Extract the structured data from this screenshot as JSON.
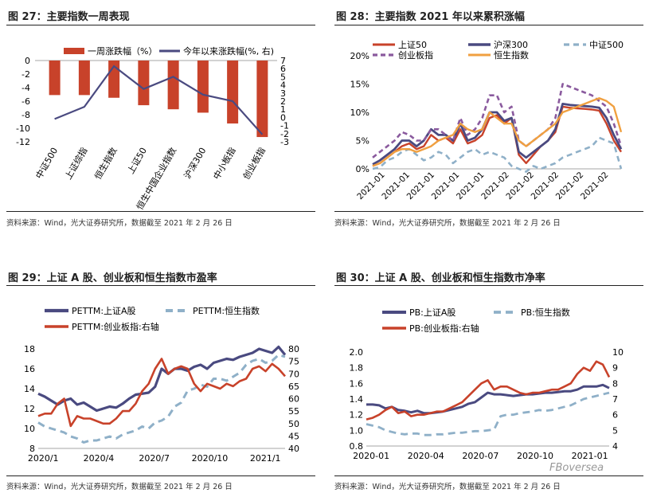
{
  "colors": {
    "red": "#c8422a",
    "navy": "#4a4a80",
    "blue": "#8fb0c8",
    "purple": "#8a5a9e",
    "orange": "#f0a040",
    "bar": "#c8422a"
  },
  "source_text": "资料来源：Wind，光大证券研究所，数据截至 2021 年 2 月 26 日",
  "watermark": "FBoversea",
  "chart_data": [
    {
      "id": "fig27",
      "type": "bar+line",
      "title": "图 27：主要指数一周表现",
      "legend": [
        "一周涨跌幅（%）",
        "今年以来涨跌幅(%, 右)"
      ],
      "categories": [
        "中证500",
        "上证综指",
        "恒生指数",
        "上证50",
        "恒生中国企业指数",
        "沪深300",
        "中小板指",
        "创业板指"
      ],
      "series": [
        {
          "name": "一周涨跌幅（%）",
          "type": "bar",
          "axis": "left",
          "values": [
            -5.1,
            -5.1,
            -5.5,
            -6.6,
            -7.2,
            -7.7,
            -9.3,
            -11.3
          ]
        },
        {
          "name": "今年以来涨跌幅(%, 右)",
          "type": "line",
          "axis": "right",
          "values": [
            -0.2,
            1.3,
            6.3,
            3.5,
            5.0,
            2.8,
            2.0,
            -2.1
          ]
        }
      ],
      "ylim": [
        -12,
        0
      ],
      "yticks": [
        "0",
        "-2",
        "-4",
        "-6",
        "-8",
        "-10",
        "-12"
      ],
      "y2lim": [
        -3,
        7
      ],
      "y2ticks": [
        "7",
        "6",
        "5",
        "4",
        "3",
        "2",
        "1",
        "0",
        "-1",
        "-2",
        "-3"
      ]
    },
    {
      "id": "fig28",
      "type": "line",
      "title": "图 28：主要指数 2021 年以来累积涨幅",
      "legend": [
        "上证50",
        "沪深300",
        "中证500",
        "创业板指",
        "恒生指数"
      ],
      "yticks": [
        "20%",
        "15%",
        "10%",
        "5%",
        "0%"
      ],
      "ylim": [
        0,
        20
      ],
      "xticks": [
        "2021-01",
        "2021-01",
        "2021-01",
        "2021-01",
        "2021-01",
        "2021-02",
        "2021-02",
        "2021-02",
        "2021-02",
        "2021-02"
      ],
      "series": [
        {
          "name": "上证50",
          "values": [
            0.5,
            1,
            2,
            3,
            4,
            4.5,
            3.5,
            4,
            6,
            5,
            5.5,
            4.5,
            7,
            4.5,
            5,
            6,
            9,
            9.5,
            8,
            9,
            2.5,
            1,
            2.5,
            4,
            5,
            6.5,
            11,
            10.8,
            10.7,
            10.6,
            10.5,
            10.3,
            8,
            5,
            3
          ]
        },
        {
          "name": "沪深300",
          "values": [
            0.8,
            1.5,
            2.5,
            3.5,
            5,
            5,
            4,
            5,
            7,
            6,
            6,
            5,
            8,
            5,
            5.5,
            7,
            10,
            10,
            8.5,
            9,
            3,
            2,
            3,
            4,
            5,
            7,
            11.5,
            11.3,
            11.2,
            11.1,
            11,
            10.8,
            9,
            6,
            3.5
          ]
        },
        {
          "name": "中证500",
          "values": [
            0,
            0.3,
            1.5,
            2,
            3,
            3.5,
            2.5,
            1.5,
            2,
            3,
            2.5,
            1,
            2,
            3,
            3.5,
            2.5,
            3,
            2.5,
            2,
            0.5,
            0,
            -0.5,
            0.5,
            0,
            0.5,
            1,
            2,
            2.5,
            3,
            3.5,
            4,
            5.5,
            5,
            4.5,
            0
          ]
        },
        {
          "name": "创业板指",
          "values": [
            2,
            3,
            4,
            5,
            6.5,
            6,
            5,
            5,
            7,
            7,
            6,
            5,
            9,
            6,
            7,
            9,
            13,
            13,
            10,
            11,
            5,
            4,
            5,
            6,
            7,
            9,
            15,
            14.5,
            14,
            13.5,
            13,
            12,
            11,
            8,
            4
          ]
        },
        {
          "name": "恒生指数",
          "values": [
            0.5,
            1,
            2,
            3,
            3.5,
            3.5,
            3,
            3.5,
            4,
            5,
            5.5,
            6,
            8,
            7,
            6.5,
            7,
            10,
            9,
            8,
            8,
            5,
            4,
            5,
            6,
            7,
            8,
            10,
            10.5,
            11,
            11.5,
            12,
            12.5,
            12,
            11,
            6.5
          ]
        }
      ]
    },
    {
      "id": "fig29",
      "type": "line",
      "title": "图 29：上证 A 股、创业板和恒生指数市盈率",
      "legend": [
        "PETTM:上证A股",
        "PETTM:恒生指数",
        "PETTM:创业板指:右轴"
      ],
      "ylim": [
        8,
        18
      ],
      "yticks": [
        "18",
        "16",
        "14",
        "12",
        "10",
        "8"
      ],
      "y2lim": [
        40,
        80
      ],
      "y2ticks": [
        "80",
        "75",
        "70",
        "65",
        "60",
        "55",
        "50",
        "45",
        "40"
      ],
      "xticks": [
        "2020/1",
        "2020/4",
        "2020/7",
        "2020/10",
        "2021/1"
      ],
      "series": [
        {
          "name": "PETTM:上证A股",
          "axis": "left",
          "values": [
            13.5,
            13.2,
            12.8,
            12.4,
            12.8,
            13.0,
            12.4,
            12.6,
            12.2,
            11.8,
            12.0,
            12.2,
            12.1,
            12.5,
            13.0,
            13.4,
            13.5,
            13.6,
            14.2,
            16.0,
            15.5,
            16.0,
            16.0,
            15.8,
            16.2,
            16.4,
            16.0,
            16.6,
            16.8,
            17.0,
            16.9,
            17.2,
            17.4,
            17.6,
            18.0,
            17.8,
            17.6,
            18.2,
            17.4
          ]
        },
        {
          "name": "PETTM:恒生指数",
          "axis": "left",
          "values": [
            10.6,
            10.2,
            10.0,
            9.8,
            9.6,
            9.2,
            9.0,
            8.6,
            8.8,
            8.8,
            9.0,
            9.2,
            9.0,
            9.4,
            9.6,
            9.8,
            10.2,
            10.0,
            10.6,
            10.8,
            11.2,
            12.2,
            12.6,
            13.8,
            14.0,
            14.4,
            14.2,
            15.0,
            15.0,
            14.8,
            15.2,
            15.6,
            16.4,
            16.8,
            17.0,
            16.6,
            16.8,
            17.4,
            17.2
          ]
        },
        {
          "name": "PETTM:创业板指:右轴",
          "axis": "right",
          "values": [
            53,
            54,
            54,
            58,
            60,
            49,
            53,
            52,
            52,
            51,
            50,
            50,
            52,
            55,
            55,
            58,
            63,
            66,
            72,
            76,
            70,
            72,
            73,
            72,
            66,
            63,
            66,
            65,
            64,
            66,
            65,
            67,
            68,
            72,
            73,
            71,
            74,
            72,
            69
          ]
        }
      ]
    },
    {
      "id": "fig30",
      "type": "line",
      "title": "图 30：上证 A 股、创业板和恒生指数市净率",
      "legend": [
        "PB:上证A股",
        "PB:恒生指数",
        "PB:创业板指:右轴"
      ],
      "ylim": [
        0.8,
        2.0
      ],
      "yticks": [
        "2.0",
        "1.8",
        "1.6",
        "1.4",
        "1.2",
        "1.0",
        "0.8"
      ],
      "y2lim": [
        4,
        10
      ],
      "y2ticks": [
        "10",
        "9",
        "8",
        "7",
        "6",
        "5",
        "4"
      ],
      "xticks": [
        "2020-01",
        "2020-04",
        "2020-07",
        "2020-10",
        "2021-01"
      ],
      "series": [
        {
          "name": "PB:上证A股",
          "axis": "left",
          "values": [
            1.33,
            1.33,
            1.32,
            1.28,
            1.3,
            1.26,
            1.25,
            1.23,
            1.25,
            1.22,
            1.22,
            1.23,
            1.24,
            1.26,
            1.28,
            1.3,
            1.34,
            1.36,
            1.42,
            1.48,
            1.46,
            1.46,
            1.45,
            1.44,
            1.45,
            1.46,
            1.46,
            1.47,
            1.48,
            1.48,
            1.49,
            1.5,
            1.5,
            1.52,
            1.56,
            1.56,
            1.56,
            1.58,
            1.54
          ]
        },
        {
          "name": "PB:恒生指数",
          "axis": "left",
          "values": [
            1.08,
            1.06,
            1.04,
            1.0,
            0.98,
            0.96,
            0.95,
            0.96,
            0.96,
            0.94,
            0.94,
            0.95,
            0.95,
            0.96,
            0.97,
            0.97,
            0.98,
            0.99,
            0.99,
            1.0,
            1.01,
            1.18,
            1.2,
            1.2,
            1.22,
            1.23,
            1.24,
            1.26,
            1.25,
            1.26,
            1.28,
            1.3,
            1.32,
            1.36,
            1.4,
            1.42,
            1.44,
            1.46,
            1.48
          ]
        },
        {
          "name": "PB:创业板指:右轴",
          "axis": "right",
          "values": [
            5.7,
            5.8,
            6.0,
            6.3,
            6.5,
            6.1,
            6.2,
            5.9,
            6.0,
            6.0,
            6.1,
            6.2,
            6.2,
            6.4,
            6.6,
            6.8,
            7.2,
            7.6,
            8.0,
            8.2,
            7.6,
            7.8,
            7.8,
            7.6,
            7.4,
            7.3,
            7.4,
            7.4,
            7.5,
            7.6,
            7.6,
            7.8,
            8.0,
            8.6,
            9.0,
            8.8,
            9.4,
            9.2,
            8.4
          ]
        }
      ]
    }
  ]
}
